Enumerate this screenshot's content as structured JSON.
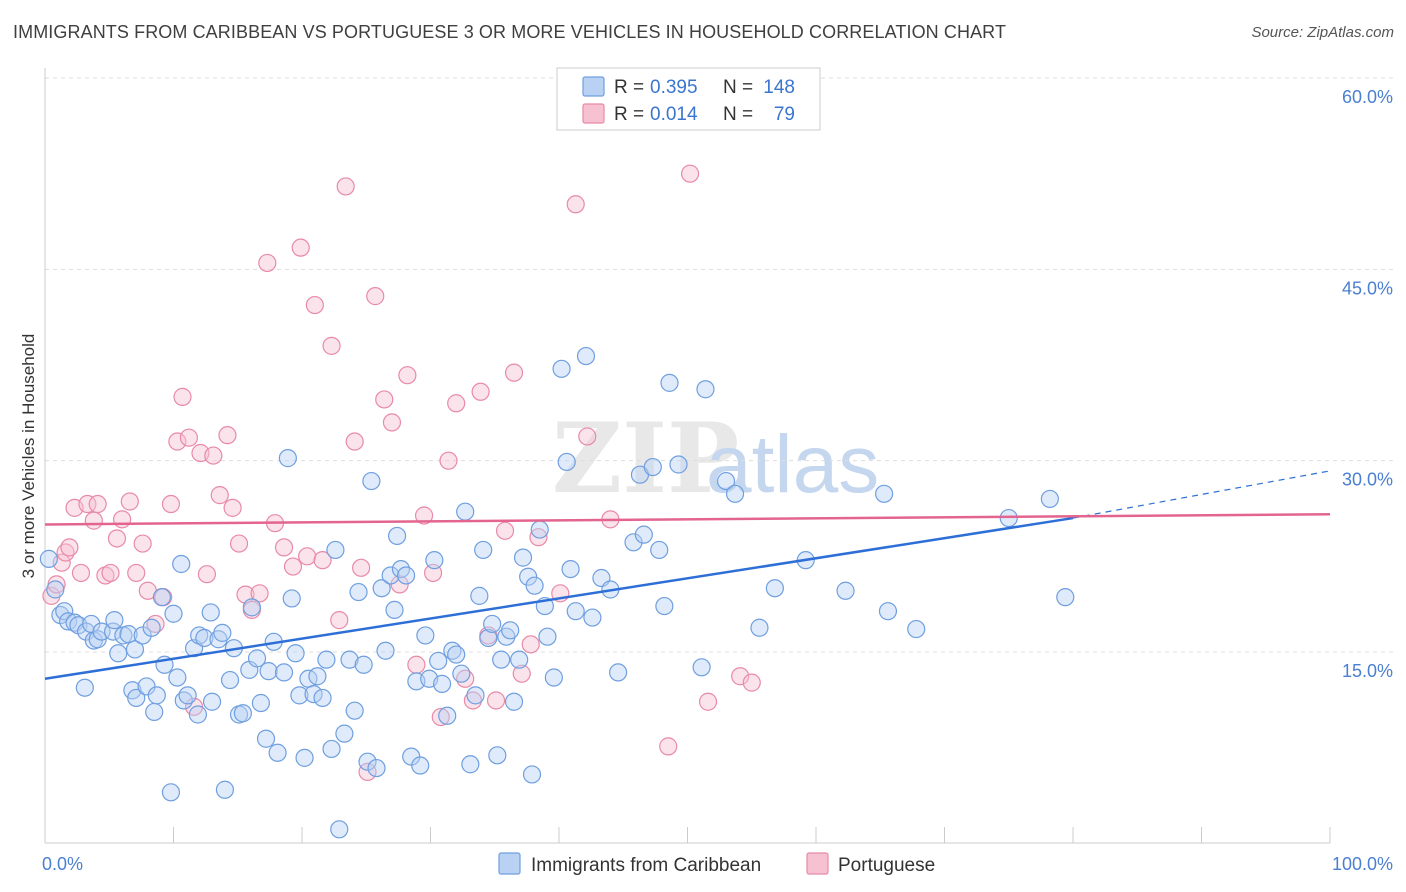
{
  "title": "IMMIGRANTS FROM CARIBBEAN VS PORTUGUESE 3 OR MORE VEHICLES IN HOUSEHOLD CORRELATION CHART",
  "source": "Source: ZipAtlas.com",
  "watermark": {
    "zip": "ZIP",
    "atlas": "atlas"
  },
  "legend": {
    "r_label": "R =",
    "n_label": "N =",
    "rows": [
      {
        "r": "0.395",
        "n": "148",
        "color": "#6f9fe0",
        "fill": "#b9d1f3"
      },
      {
        "r": "0.014",
        "n": "79",
        "color": "#e88aa8",
        "fill": "#f6c2d2"
      }
    ]
  },
  "bottom_legend": [
    "Immigrants from Caribbean",
    "Portuguese"
  ],
  "colors": {
    "blue_line": "#2d6fd6",
    "pink_line": "#e3648f",
    "blue_point_stroke": "#6f9fe0",
    "blue_point_fill": "#b9d1f3",
    "pink_point_stroke": "#e88aa8",
    "pink_point_fill": "#f6c2d2",
    "tick_text": "#4a7fd1",
    "grid": "#dddddd"
  },
  "chart_data": {
    "type": "scatter",
    "title": "IMMIGRANTS FROM CARIBBEAN VS PORTUGUESE 3 OR MORE VEHICLES IN HOUSEHOLD CORRELATION CHART",
    "xlabel": "",
    "ylabel": "3 or more Vehicles in Household",
    "xlim": [
      0,
      100
    ],
    "ylim": [
      0,
      63
    ],
    "x_tick_labels": [
      "0.0%",
      "100.0%"
    ],
    "y_ticks": [
      15,
      30,
      45,
      60
    ],
    "y_tick_labels": [
      "15.0%",
      "30.0%",
      "45.0%",
      "60.0%"
    ],
    "grid": "horizontal dashed",
    "legend_position": "top-center",
    "series": [
      {
        "name": "Immigrants from Caribbean",
        "trend": {
          "x": [
            0,
            80
          ],
          "y": [
            12.9,
            25.5
          ],
          "dashed_extension_to": [
            100,
            29.2
          ]
        },
        "points": [
          [
            0.3,
            22.3
          ],
          [
            0.8,
            19.9
          ],
          [
            1.2,
            17.9
          ],
          [
            1.5,
            18.2
          ],
          [
            1.8,
            17.4
          ],
          [
            2.3,
            17.3
          ],
          [
            2.6,
            17.1
          ],
          [
            3.1,
            12.2
          ],
          [
            3.2,
            16.6
          ],
          [
            3.6,
            17.2
          ],
          [
            3.8,
            15.9
          ],
          [
            4.1,
            16.0
          ],
          [
            4.4,
            16.6
          ],
          [
            5.3,
            16.6
          ],
          [
            5.4,
            17.5
          ],
          [
            5.7,
            14.9
          ],
          [
            6.1,
            16.3
          ],
          [
            6.5,
            16.4
          ],
          [
            6.8,
            12.0
          ],
          [
            7.0,
            15.2
          ],
          [
            7.1,
            11.4
          ],
          [
            7.6,
            16.3
          ],
          [
            7.9,
            12.3
          ],
          [
            8.3,
            16.9
          ],
          [
            8.5,
            10.3
          ],
          [
            8.7,
            11.6
          ],
          [
            9.1,
            19.3
          ],
          [
            9.3,
            14.0
          ],
          [
            9.8,
            4.0
          ],
          [
            10.0,
            18.0
          ],
          [
            10.3,
            13.0
          ],
          [
            10.6,
            21.9
          ],
          [
            10.8,
            11.2
          ],
          [
            11.1,
            11.6
          ],
          [
            11.6,
            15.3
          ],
          [
            11.9,
            10.1
          ],
          [
            12.0,
            16.3
          ],
          [
            12.4,
            16.1
          ],
          [
            12.9,
            18.1
          ],
          [
            13.0,
            11.1
          ],
          [
            13.5,
            16.0
          ],
          [
            13.8,
            16.5
          ],
          [
            14.0,
            4.2
          ],
          [
            14.4,
            12.8
          ],
          [
            14.7,
            15.3
          ],
          [
            15.1,
            10.1
          ],
          [
            15.4,
            10.2
          ],
          [
            15.9,
            13.6
          ],
          [
            16.1,
            18.5
          ],
          [
            16.5,
            14.5
          ],
          [
            16.8,
            11.0
          ],
          [
            17.2,
            8.2
          ],
          [
            17.4,
            13.5
          ],
          [
            17.8,
            15.8
          ],
          [
            18.1,
            7.1
          ],
          [
            18.6,
            13.4
          ],
          [
            18.9,
            30.2
          ],
          [
            19.2,
            19.2
          ],
          [
            19.5,
            14.9
          ],
          [
            19.8,
            11.6
          ],
          [
            20.2,
            6.7
          ],
          [
            20.5,
            12.9
          ],
          [
            20.9,
            11.7
          ],
          [
            21.2,
            13.1
          ],
          [
            21.6,
            11.4
          ],
          [
            21.9,
            14.4
          ],
          [
            22.3,
            7.4
          ],
          [
            22.6,
            23.0
          ],
          [
            22.9,
            1.1
          ],
          [
            23.3,
            8.6
          ],
          [
            23.7,
            14.4
          ],
          [
            24.1,
            10.4
          ],
          [
            24.4,
            19.7
          ],
          [
            24.8,
            14.0
          ],
          [
            25.1,
            6.4
          ],
          [
            25.4,
            28.4
          ],
          [
            25.8,
            5.9
          ],
          [
            26.2,
            20.0
          ],
          [
            26.5,
            15.1
          ],
          [
            26.9,
            21.0
          ],
          [
            27.2,
            18.3
          ],
          [
            27.4,
            24.1
          ],
          [
            27.7,
            21.5
          ],
          [
            28.1,
            21.0
          ],
          [
            28.5,
            6.8
          ],
          [
            28.9,
            12.7
          ],
          [
            29.2,
            6.1
          ],
          [
            29.6,
            16.3
          ],
          [
            29.9,
            12.9
          ],
          [
            30.3,
            22.2
          ],
          [
            30.6,
            14.3
          ],
          [
            30.9,
            12.5
          ],
          [
            31.3,
            10.0
          ],
          [
            31.7,
            15.1
          ],
          [
            32.0,
            14.8
          ],
          [
            32.4,
            13.3
          ],
          [
            32.7,
            26.0
          ],
          [
            33.1,
            6.2
          ],
          [
            33.5,
            11.6
          ],
          [
            33.8,
            19.4
          ],
          [
            34.1,
            23.0
          ],
          [
            34.5,
            16.1
          ],
          [
            34.8,
            17.2
          ],
          [
            35.2,
            6.9
          ],
          [
            35.5,
            14.4
          ],
          [
            35.9,
            16.2
          ],
          [
            36.2,
            16.7
          ],
          [
            36.5,
            11.1
          ],
          [
            36.9,
            14.4
          ],
          [
            37.2,
            22.4
          ],
          [
            37.6,
            20.9
          ],
          [
            37.9,
            5.4
          ],
          [
            38.1,
            20.2
          ],
          [
            38.5,
            24.6
          ],
          [
            38.9,
            18.6
          ],
          [
            39.1,
            16.2
          ],
          [
            39.6,
            13.0
          ],
          [
            40.2,
            37.2
          ],
          [
            40.6,
            29.9
          ],
          [
            40.9,
            21.5
          ],
          [
            41.3,
            18.2
          ],
          [
            42.1,
            38.2
          ],
          [
            42.6,
            17.7
          ],
          [
            43.3,
            20.8
          ],
          [
            44.0,
            19.9
          ],
          [
            44.6,
            13.4
          ],
          [
            45.8,
            23.6
          ],
          [
            46.3,
            28.9
          ],
          [
            46.6,
            24.2
          ],
          [
            47.3,
            29.5
          ],
          [
            47.8,
            23.0
          ],
          [
            48.2,
            18.6
          ],
          [
            48.6,
            36.1
          ],
          [
            49.3,
            29.7
          ],
          [
            51.1,
            13.8
          ],
          [
            51.4,
            35.6
          ],
          [
            53.0,
            28.4
          ],
          [
            53.7,
            27.4
          ],
          [
            55.6,
            16.9
          ],
          [
            56.8,
            20.0
          ],
          [
            59.2,
            22.2
          ],
          [
            62.3,
            19.8
          ],
          [
            65.3,
            27.4
          ],
          [
            65.6,
            18.2
          ],
          [
            67.8,
            16.8
          ],
          [
            75.0,
            25.5
          ],
          [
            78.2,
            27.0
          ],
          [
            79.4,
            19.3
          ]
        ]
      },
      {
        "name": "Portuguese",
        "trend": {
          "x": [
            0,
            100
          ],
          "y": [
            25.0,
            25.8
          ]
        },
        "points": [
          [
            0.5,
            19.4
          ],
          [
            0.9,
            20.3
          ],
          [
            1.3,
            22.0
          ],
          [
            1.6,
            22.8
          ],
          [
            1.9,
            23.2
          ],
          [
            2.3,
            26.3
          ],
          [
            2.8,
            21.2
          ],
          [
            3.3,
            26.6
          ],
          [
            3.8,
            25.3
          ],
          [
            4.1,
            26.6
          ],
          [
            4.7,
            21.0
          ],
          [
            5.1,
            21.2
          ],
          [
            5.6,
            23.9
          ],
          [
            6.0,
            25.4
          ],
          [
            6.6,
            26.8
          ],
          [
            7.1,
            21.2
          ],
          [
            7.6,
            23.5
          ],
          [
            8.0,
            19.8
          ],
          [
            8.6,
            17.2
          ],
          [
            9.2,
            19.3
          ],
          [
            9.8,
            26.6
          ],
          [
            10.3,
            31.5
          ],
          [
            10.7,
            35.0
          ],
          [
            11.2,
            31.8
          ],
          [
            11.6,
            10.7
          ],
          [
            12.1,
            30.6
          ],
          [
            12.6,
            21.1
          ],
          [
            13.1,
            30.4
          ],
          [
            13.6,
            27.3
          ],
          [
            14.2,
            32.0
          ],
          [
            14.6,
            26.3
          ],
          [
            15.1,
            23.5
          ],
          [
            15.6,
            19.5
          ],
          [
            16.1,
            18.3
          ],
          [
            16.7,
            19.6
          ],
          [
            17.3,
            45.5
          ],
          [
            17.9,
            25.1
          ],
          [
            18.6,
            23.2
          ],
          [
            19.3,
            21.7
          ],
          [
            19.9,
            46.7
          ],
          [
            20.4,
            22.5
          ],
          [
            21.0,
            42.2
          ],
          [
            21.6,
            22.2
          ],
          [
            22.3,
            39.0
          ],
          [
            22.9,
            17.5
          ],
          [
            23.4,
            51.5
          ],
          [
            24.1,
            31.5
          ],
          [
            24.6,
            21.6
          ],
          [
            25.1,
            5.6
          ],
          [
            25.7,
            42.9
          ],
          [
            26.4,
            34.8
          ],
          [
            27.0,
            33.0
          ],
          [
            27.6,
            20.3
          ],
          [
            28.2,
            36.7
          ],
          [
            28.9,
            14.0
          ],
          [
            29.5,
            25.7
          ],
          [
            30.2,
            21.2
          ],
          [
            30.8,
            9.9
          ],
          [
            31.4,
            30.0
          ],
          [
            32.0,
            34.5
          ],
          [
            32.7,
            12.9
          ],
          [
            33.3,
            11.2
          ],
          [
            33.9,
            35.4
          ],
          [
            34.5,
            16.3
          ],
          [
            35.1,
            11.2
          ],
          [
            35.8,
            24.5
          ],
          [
            36.5,
            36.9
          ],
          [
            37.1,
            13.3
          ],
          [
            37.8,
            15.6
          ],
          [
            38.4,
            24.0
          ],
          [
            40.1,
            19.6
          ],
          [
            41.3,
            50.1
          ],
          [
            42.2,
            31.9
          ],
          [
            44.0,
            25.4
          ],
          [
            48.5,
            7.6
          ],
          [
            50.2,
            52.5
          ],
          [
            51.6,
            11.1
          ],
          [
            54.1,
            13.1
          ],
          [
            55.0,
            12.6
          ]
        ]
      }
    ]
  }
}
